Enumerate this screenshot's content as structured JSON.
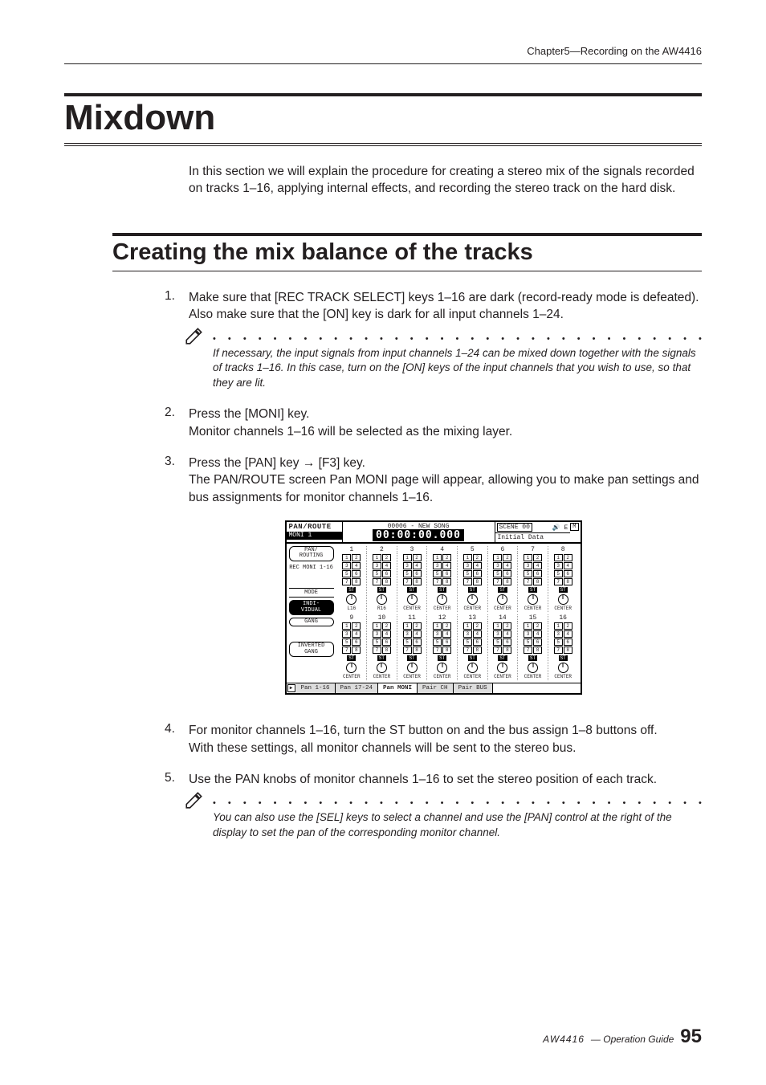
{
  "chapter_header": "Chapter5—Recording on the AW4416",
  "title": "Mixdown",
  "intro": "In this section we will explain the procedure for creating a stereo mix of the signals recorded on tracks 1–16, applying internal effects, and recording the stereo track on the hard disk.",
  "subtitle": "Creating the mix balance of the tracks",
  "steps": [
    {
      "num": "1.",
      "head": "Make sure that [REC TRACK SELECT] keys 1–16 are dark (record-ready mode is defeated). Also make sure that the [ON] key is dark for all input channels 1–24.",
      "desc": "",
      "note": "If necessary, the input signals from input channels 1–24 can be mixed down together with the signals of tracks 1–16. In this case, turn on the [ON] keys of the input channels that you wish to use, so that they are lit."
    },
    {
      "num": "2.",
      "head": "Press the [MONI] key.",
      "desc": "Monitor channels 1–16 will be selected as the mixing layer."
    },
    {
      "num": "3.",
      "head": "Press the [PAN] key → [F3] key.",
      "desc": "The PAN/ROUTE screen Pan MONI page will appear, allowing you to make pan settings and bus assignments for monitor channels 1–16."
    },
    {
      "num": "4.",
      "head": "For monitor channels 1–16, turn the ST button on and the bus assign 1–8 buttons off.",
      "desc": "With these settings, all monitor channels will be sent to the stereo bus."
    },
    {
      "num": "5.",
      "head": "Use the PAN knobs of monitor channels 1–16 to set the stereo position of each track.",
      "desc": "",
      "note": "You can also use the [SEL] keys to select a channel and use the [PAN] control at the right of the display to set the pan of the corresponding monitor channel."
    }
  ],
  "lcd": {
    "title": "PAN/ROUTE",
    "moni": "MONI 1",
    "song_label": "00006 - NEW SONG",
    "time": "00:00:00.000",
    "scene": "SCENE 00",
    "scene_sub": "Initial Data",
    "indicator": "E",
    "m_box": "M",
    "left_buttons_top": [
      "PAN/\nROUTING"
    ],
    "left_labels": [
      "REC\nMONI\n1-16"
    ],
    "mode_label": "MODE",
    "mode_buttons": [
      {
        "label": "INDI-\nVIDUAL",
        "active": true
      },
      {
        "label": "GANG",
        "active": false
      },
      {
        "label": "INVERTED\nGANG",
        "active": false
      }
    ],
    "ch_top": [
      "1",
      "2",
      "3",
      "4",
      "5",
      "6",
      "7",
      "8"
    ],
    "ch_bottom": [
      "9",
      "10",
      "11",
      "12",
      "13",
      "14",
      "15",
      "16"
    ],
    "knob_labels_top": [
      "L16",
      "R16",
      "CENTER",
      "CENTER",
      "CENTER",
      "CENTER",
      "CENTER",
      "CENTER"
    ],
    "knob_labels_bottom": [
      "CENTER",
      "CENTER",
      "CENTER",
      "CENTER",
      "CENTER",
      "CENTER",
      "CENTER",
      "CENTER"
    ],
    "st_label": "ST",
    "tabs": [
      "Pan 1-16",
      "Pan 17-24",
      "Pan MONI",
      "Pair CH",
      "Pair BUS"
    ],
    "active_tab": 2
  },
  "footer": {
    "brand": "AW4416",
    "guide": "— Operation Guide",
    "page": "95"
  },
  "colors": {
    "text": "#231f20",
    "bg": "#ffffff"
  },
  "dots": "• • • • • • • • • • • • • • • • • • • • • • • • • • • • • • • • • • • • • • • • • • • •"
}
